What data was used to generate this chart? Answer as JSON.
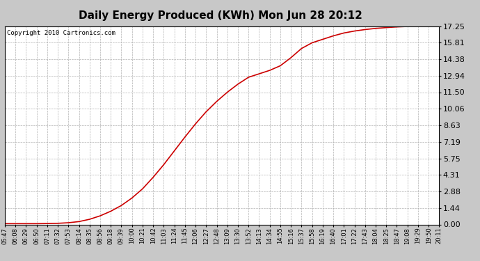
{
  "title": "Daily Energy Produced (KWh) Mon Jun 28 20:12",
  "copyright_text": "Copyright 2010 Cartronics.com",
  "background_color": "#c8c8c8",
  "plot_bg_color": "#ffffff",
  "line_color": "#cc0000",
  "grid_color": "#aaaaaa",
  "yticks": [
    0.0,
    1.44,
    2.88,
    4.31,
    5.75,
    7.19,
    8.63,
    10.06,
    11.5,
    12.94,
    14.38,
    15.81,
    17.25
  ],
  "x_labels": [
    "05:47",
    "06:08",
    "06:29",
    "06:50",
    "07:11",
    "07:32",
    "07:53",
    "08:14",
    "08:35",
    "08:56",
    "09:18",
    "09:39",
    "10:00",
    "10:21",
    "10:42",
    "11:03",
    "11:24",
    "11:45",
    "12:06",
    "12:27",
    "12:48",
    "13:09",
    "13:30",
    "13:52",
    "14:13",
    "14:34",
    "14:55",
    "15:16",
    "15:37",
    "15:58",
    "16:19",
    "16:40",
    "17:01",
    "17:22",
    "17:43",
    "18:04",
    "18:25",
    "18:47",
    "19:08",
    "19:29",
    "19:50",
    "20:11"
  ],
  "ymax": 17.25,
  "ymin": 0.0,
  "title_fontsize": 11,
  "axis_fontsize": 6,
  "copyright_fontsize": 6.5,
  "y_values": [
    0.07,
    0.07,
    0.07,
    0.07,
    0.08,
    0.1,
    0.15,
    0.25,
    0.45,
    0.75,
    1.15,
    1.65,
    2.3,
    3.1,
    4.1,
    5.2,
    6.4,
    7.6,
    8.75,
    9.8,
    10.7,
    11.5,
    12.2,
    12.8,
    13.1,
    13.4,
    13.8,
    14.5,
    15.3,
    15.8,
    16.1,
    16.4,
    16.65,
    16.82,
    16.95,
    17.05,
    17.12,
    17.18,
    17.22,
    17.24,
    17.25,
    17.25
  ]
}
